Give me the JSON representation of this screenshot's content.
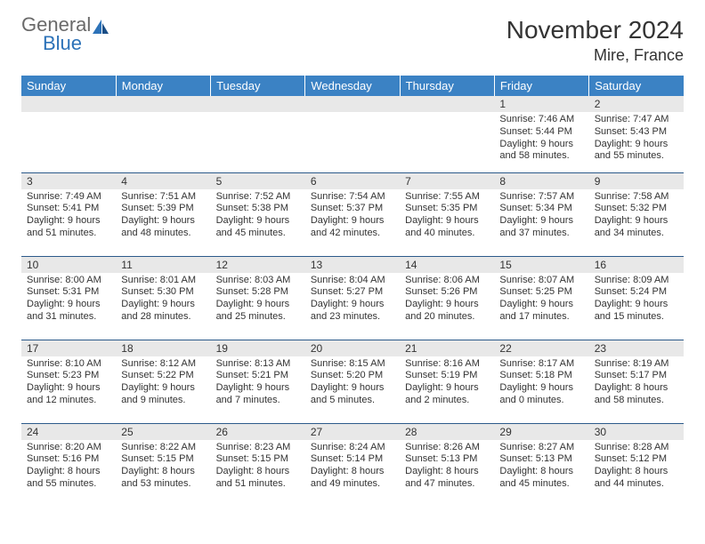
{
  "logo": {
    "general": "General",
    "blue": "Blue"
  },
  "title": "November 2024",
  "location": "Mire, France",
  "colors": {
    "header_bg": "#3b82c4",
    "header_fg": "#ffffff",
    "daynum_bg": "#e8e8e8",
    "text": "#333333",
    "rule": "#2c5a8a",
    "logo_gray": "#6a6a6a",
    "logo_blue": "#2c72b8"
  },
  "day_headers": [
    "Sunday",
    "Monday",
    "Tuesday",
    "Wednesday",
    "Thursday",
    "Friday",
    "Saturday"
  ],
  "weeks": [
    [
      null,
      null,
      null,
      null,
      null,
      {
        "n": "1",
        "sr": "Sunrise: 7:46 AM",
        "ss": "Sunset: 5:44 PM",
        "d1": "Daylight: 9 hours",
        "d2": "and 58 minutes."
      },
      {
        "n": "2",
        "sr": "Sunrise: 7:47 AM",
        "ss": "Sunset: 5:43 PM",
        "d1": "Daylight: 9 hours",
        "d2": "and 55 minutes."
      }
    ],
    [
      {
        "n": "3",
        "sr": "Sunrise: 7:49 AM",
        "ss": "Sunset: 5:41 PM",
        "d1": "Daylight: 9 hours",
        "d2": "and 51 minutes."
      },
      {
        "n": "4",
        "sr": "Sunrise: 7:51 AM",
        "ss": "Sunset: 5:39 PM",
        "d1": "Daylight: 9 hours",
        "d2": "and 48 minutes."
      },
      {
        "n": "5",
        "sr": "Sunrise: 7:52 AM",
        "ss": "Sunset: 5:38 PM",
        "d1": "Daylight: 9 hours",
        "d2": "and 45 minutes."
      },
      {
        "n": "6",
        "sr": "Sunrise: 7:54 AM",
        "ss": "Sunset: 5:37 PM",
        "d1": "Daylight: 9 hours",
        "d2": "and 42 minutes."
      },
      {
        "n": "7",
        "sr": "Sunrise: 7:55 AM",
        "ss": "Sunset: 5:35 PM",
        "d1": "Daylight: 9 hours",
        "d2": "and 40 minutes."
      },
      {
        "n": "8",
        "sr": "Sunrise: 7:57 AM",
        "ss": "Sunset: 5:34 PM",
        "d1": "Daylight: 9 hours",
        "d2": "and 37 minutes."
      },
      {
        "n": "9",
        "sr": "Sunrise: 7:58 AM",
        "ss": "Sunset: 5:32 PM",
        "d1": "Daylight: 9 hours",
        "d2": "and 34 minutes."
      }
    ],
    [
      {
        "n": "10",
        "sr": "Sunrise: 8:00 AM",
        "ss": "Sunset: 5:31 PM",
        "d1": "Daylight: 9 hours",
        "d2": "and 31 minutes."
      },
      {
        "n": "11",
        "sr": "Sunrise: 8:01 AM",
        "ss": "Sunset: 5:30 PM",
        "d1": "Daylight: 9 hours",
        "d2": "and 28 minutes."
      },
      {
        "n": "12",
        "sr": "Sunrise: 8:03 AM",
        "ss": "Sunset: 5:28 PM",
        "d1": "Daylight: 9 hours",
        "d2": "and 25 minutes."
      },
      {
        "n": "13",
        "sr": "Sunrise: 8:04 AM",
        "ss": "Sunset: 5:27 PM",
        "d1": "Daylight: 9 hours",
        "d2": "and 23 minutes."
      },
      {
        "n": "14",
        "sr": "Sunrise: 8:06 AM",
        "ss": "Sunset: 5:26 PM",
        "d1": "Daylight: 9 hours",
        "d2": "and 20 minutes."
      },
      {
        "n": "15",
        "sr": "Sunrise: 8:07 AM",
        "ss": "Sunset: 5:25 PM",
        "d1": "Daylight: 9 hours",
        "d2": "and 17 minutes."
      },
      {
        "n": "16",
        "sr": "Sunrise: 8:09 AM",
        "ss": "Sunset: 5:24 PM",
        "d1": "Daylight: 9 hours",
        "d2": "and 15 minutes."
      }
    ],
    [
      {
        "n": "17",
        "sr": "Sunrise: 8:10 AM",
        "ss": "Sunset: 5:23 PM",
        "d1": "Daylight: 9 hours",
        "d2": "and 12 minutes."
      },
      {
        "n": "18",
        "sr": "Sunrise: 8:12 AM",
        "ss": "Sunset: 5:22 PM",
        "d1": "Daylight: 9 hours",
        "d2": "and 9 minutes."
      },
      {
        "n": "19",
        "sr": "Sunrise: 8:13 AM",
        "ss": "Sunset: 5:21 PM",
        "d1": "Daylight: 9 hours",
        "d2": "and 7 minutes."
      },
      {
        "n": "20",
        "sr": "Sunrise: 8:15 AM",
        "ss": "Sunset: 5:20 PM",
        "d1": "Daylight: 9 hours",
        "d2": "and 5 minutes."
      },
      {
        "n": "21",
        "sr": "Sunrise: 8:16 AM",
        "ss": "Sunset: 5:19 PM",
        "d1": "Daylight: 9 hours",
        "d2": "and 2 minutes."
      },
      {
        "n": "22",
        "sr": "Sunrise: 8:17 AM",
        "ss": "Sunset: 5:18 PM",
        "d1": "Daylight: 9 hours",
        "d2": "and 0 minutes."
      },
      {
        "n": "23",
        "sr": "Sunrise: 8:19 AM",
        "ss": "Sunset: 5:17 PM",
        "d1": "Daylight: 8 hours",
        "d2": "and 58 minutes."
      }
    ],
    [
      {
        "n": "24",
        "sr": "Sunrise: 8:20 AM",
        "ss": "Sunset: 5:16 PM",
        "d1": "Daylight: 8 hours",
        "d2": "and 55 minutes."
      },
      {
        "n": "25",
        "sr": "Sunrise: 8:22 AM",
        "ss": "Sunset: 5:15 PM",
        "d1": "Daylight: 8 hours",
        "d2": "and 53 minutes."
      },
      {
        "n": "26",
        "sr": "Sunrise: 8:23 AM",
        "ss": "Sunset: 5:15 PM",
        "d1": "Daylight: 8 hours",
        "d2": "and 51 minutes."
      },
      {
        "n": "27",
        "sr": "Sunrise: 8:24 AM",
        "ss": "Sunset: 5:14 PM",
        "d1": "Daylight: 8 hours",
        "d2": "and 49 minutes."
      },
      {
        "n": "28",
        "sr": "Sunrise: 8:26 AM",
        "ss": "Sunset: 5:13 PM",
        "d1": "Daylight: 8 hours",
        "d2": "and 47 minutes."
      },
      {
        "n": "29",
        "sr": "Sunrise: 8:27 AM",
        "ss": "Sunset: 5:13 PM",
        "d1": "Daylight: 8 hours",
        "d2": "and 45 minutes."
      },
      {
        "n": "30",
        "sr": "Sunrise: 8:28 AM",
        "ss": "Sunset: 5:12 PM",
        "d1": "Daylight: 8 hours",
        "d2": "and 44 minutes."
      }
    ]
  ]
}
